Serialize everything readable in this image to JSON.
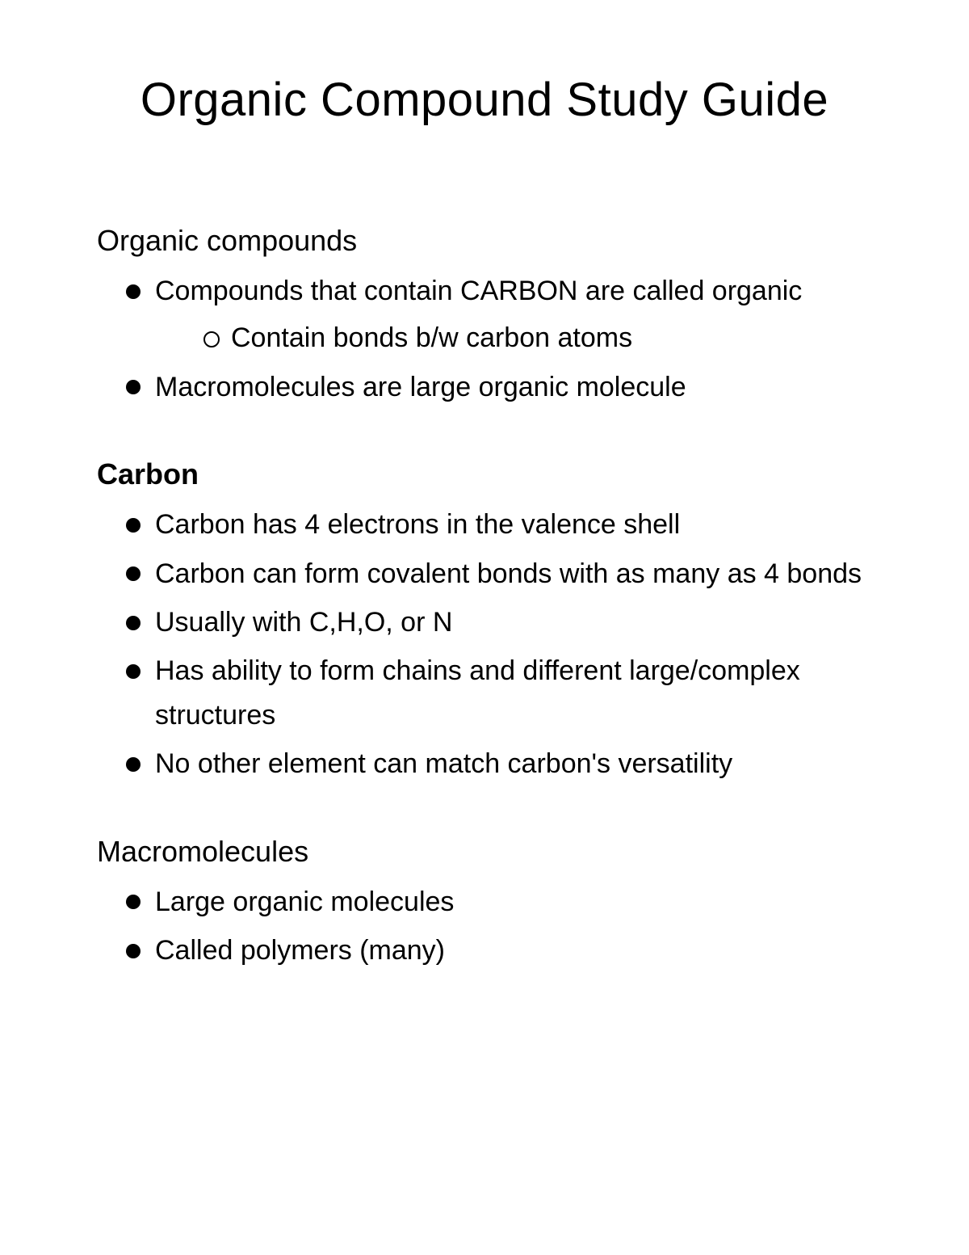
{
  "title": "Organic Compound Study Guide",
  "colors": {
    "background": "#ffffff",
    "text": "#000000",
    "bullet_fill": "#000000",
    "sub_bullet_border": "#000000"
  },
  "typography": {
    "title_fontsize": 58,
    "heading_fontsize": 36,
    "body_fontsize": 34,
    "font_family": "Comic Sans MS / handwritten"
  },
  "sections": [
    {
      "heading": "Organic compounds",
      "heading_bold": false,
      "items": [
        {
          "text": "Compounds that contain CARBON are called organic",
          "sub": [
            {
              "text": "Contain bonds b/w carbon atoms"
            }
          ]
        },
        {
          "text": "Macromolecules are large organic molecule"
        }
      ]
    },
    {
      "heading": "Carbon",
      "heading_bold": true,
      "items": [
        {
          "text": "Carbon has 4 electrons in the valence shell"
        },
        {
          "text": "Carbon can form covalent bonds with as many as 4 bonds"
        },
        {
          "text": "Usually with C,H,O, or N"
        },
        {
          "text": "Has ability to form chains and different large/complex structures"
        },
        {
          "text": "No other element can match carbon's versatility"
        }
      ]
    },
    {
      "heading": "Macromolecules",
      "heading_bold": false,
      "items": [
        {
          "text": "Large organic molecules"
        },
        {
          "text": "Called polymers (many)"
        }
      ]
    }
  ]
}
